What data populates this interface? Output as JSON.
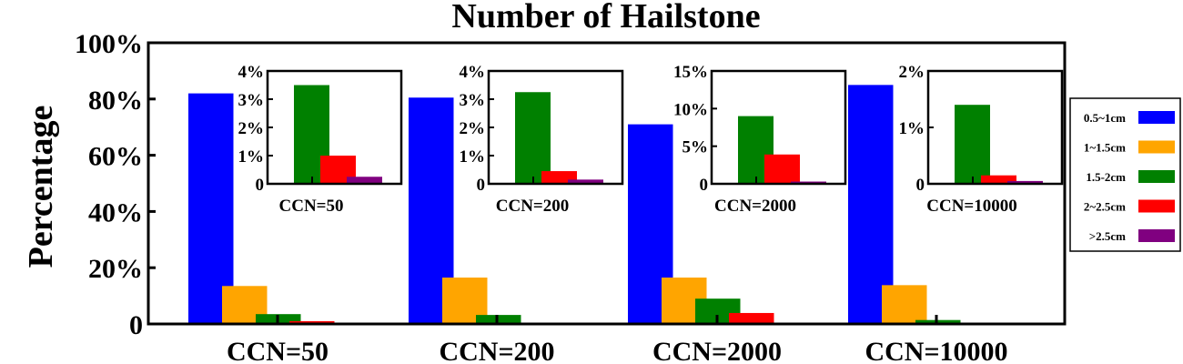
{
  "chart_data": {
    "type": "bar",
    "title": "Number of Hailstone",
    "ylabel": "Percentage",
    "xlabel": "",
    "ylim": [
      0,
      100
    ],
    "yticks": [
      0,
      20,
      40,
      60,
      80,
      100
    ],
    "ytick_labels": [
      "0",
      "20%",
      "40%",
      "60%",
      "80%",
      "100%"
    ],
    "categories": [
      "CCN=50",
      "CCN=200",
      "CCN=2000",
      "CCN=10000"
    ],
    "series": [
      {
        "name": "0.5~1cm",
        "color": "#0000ff",
        "values": [
          82,
          80.5,
          71,
          85
        ]
      },
      {
        "name": "1~1.5cm",
        "color": "#ffa500",
        "values": [
          13.5,
          16.5,
          16.5,
          13.8
        ]
      },
      {
        "name": "1.5-2cm",
        "color": "#008000",
        "values": [
          3.5,
          3.2,
          9,
          1.4
        ]
      },
      {
        "name": "2~2.5cm",
        "color": "#ff0000",
        "values": [
          1.0,
          0.45,
          3.9,
          0.15
        ]
      },
      {
        "name": ">2.5cm",
        "color": "#800080",
        "values": [
          0.25,
          0.15,
          0.3,
          0.05
        ]
      }
    ],
    "legend_position": "right",
    "grid": false,
    "insets": [
      {
        "label": "CCN=50",
        "ylim": [
          0,
          4
        ],
        "yticks": [
          0,
          1,
          2,
          3,
          4
        ],
        "ytick_labels": [
          "0",
          "1%",
          "2%",
          "3%",
          "4%"
        ],
        "values": [
          3.5,
          1.0,
          0.25
        ]
      },
      {
        "label": "CCN=200",
        "ylim": [
          0,
          4
        ],
        "yticks": [
          0,
          1,
          2,
          3,
          4
        ],
        "ytick_labels": [
          "0",
          "1%",
          "2%",
          "3%",
          "4%"
        ],
        "values": [
          3.25,
          0.45,
          0.15
        ]
      },
      {
        "label": "CCN=2000",
        "ylim": [
          0,
          15
        ],
        "yticks": [
          0,
          5,
          10,
          15
        ],
        "ytick_labels": [
          "0",
          "5%",
          "10%",
          "15%"
        ],
        "values": [
          9.0,
          3.9,
          0.3
        ]
      },
      {
        "label": "CCN=10000",
        "ylim": [
          0,
          2
        ],
        "yticks": [
          0,
          1,
          2
        ],
        "ytick_labels": [
          "0",
          "1%",
          "2%"
        ],
        "values": [
          1.4,
          0.15,
          0.05
        ]
      }
    ],
    "inset_series_colors": [
      "#008000",
      "#ff0000",
      "#800080"
    ]
  }
}
